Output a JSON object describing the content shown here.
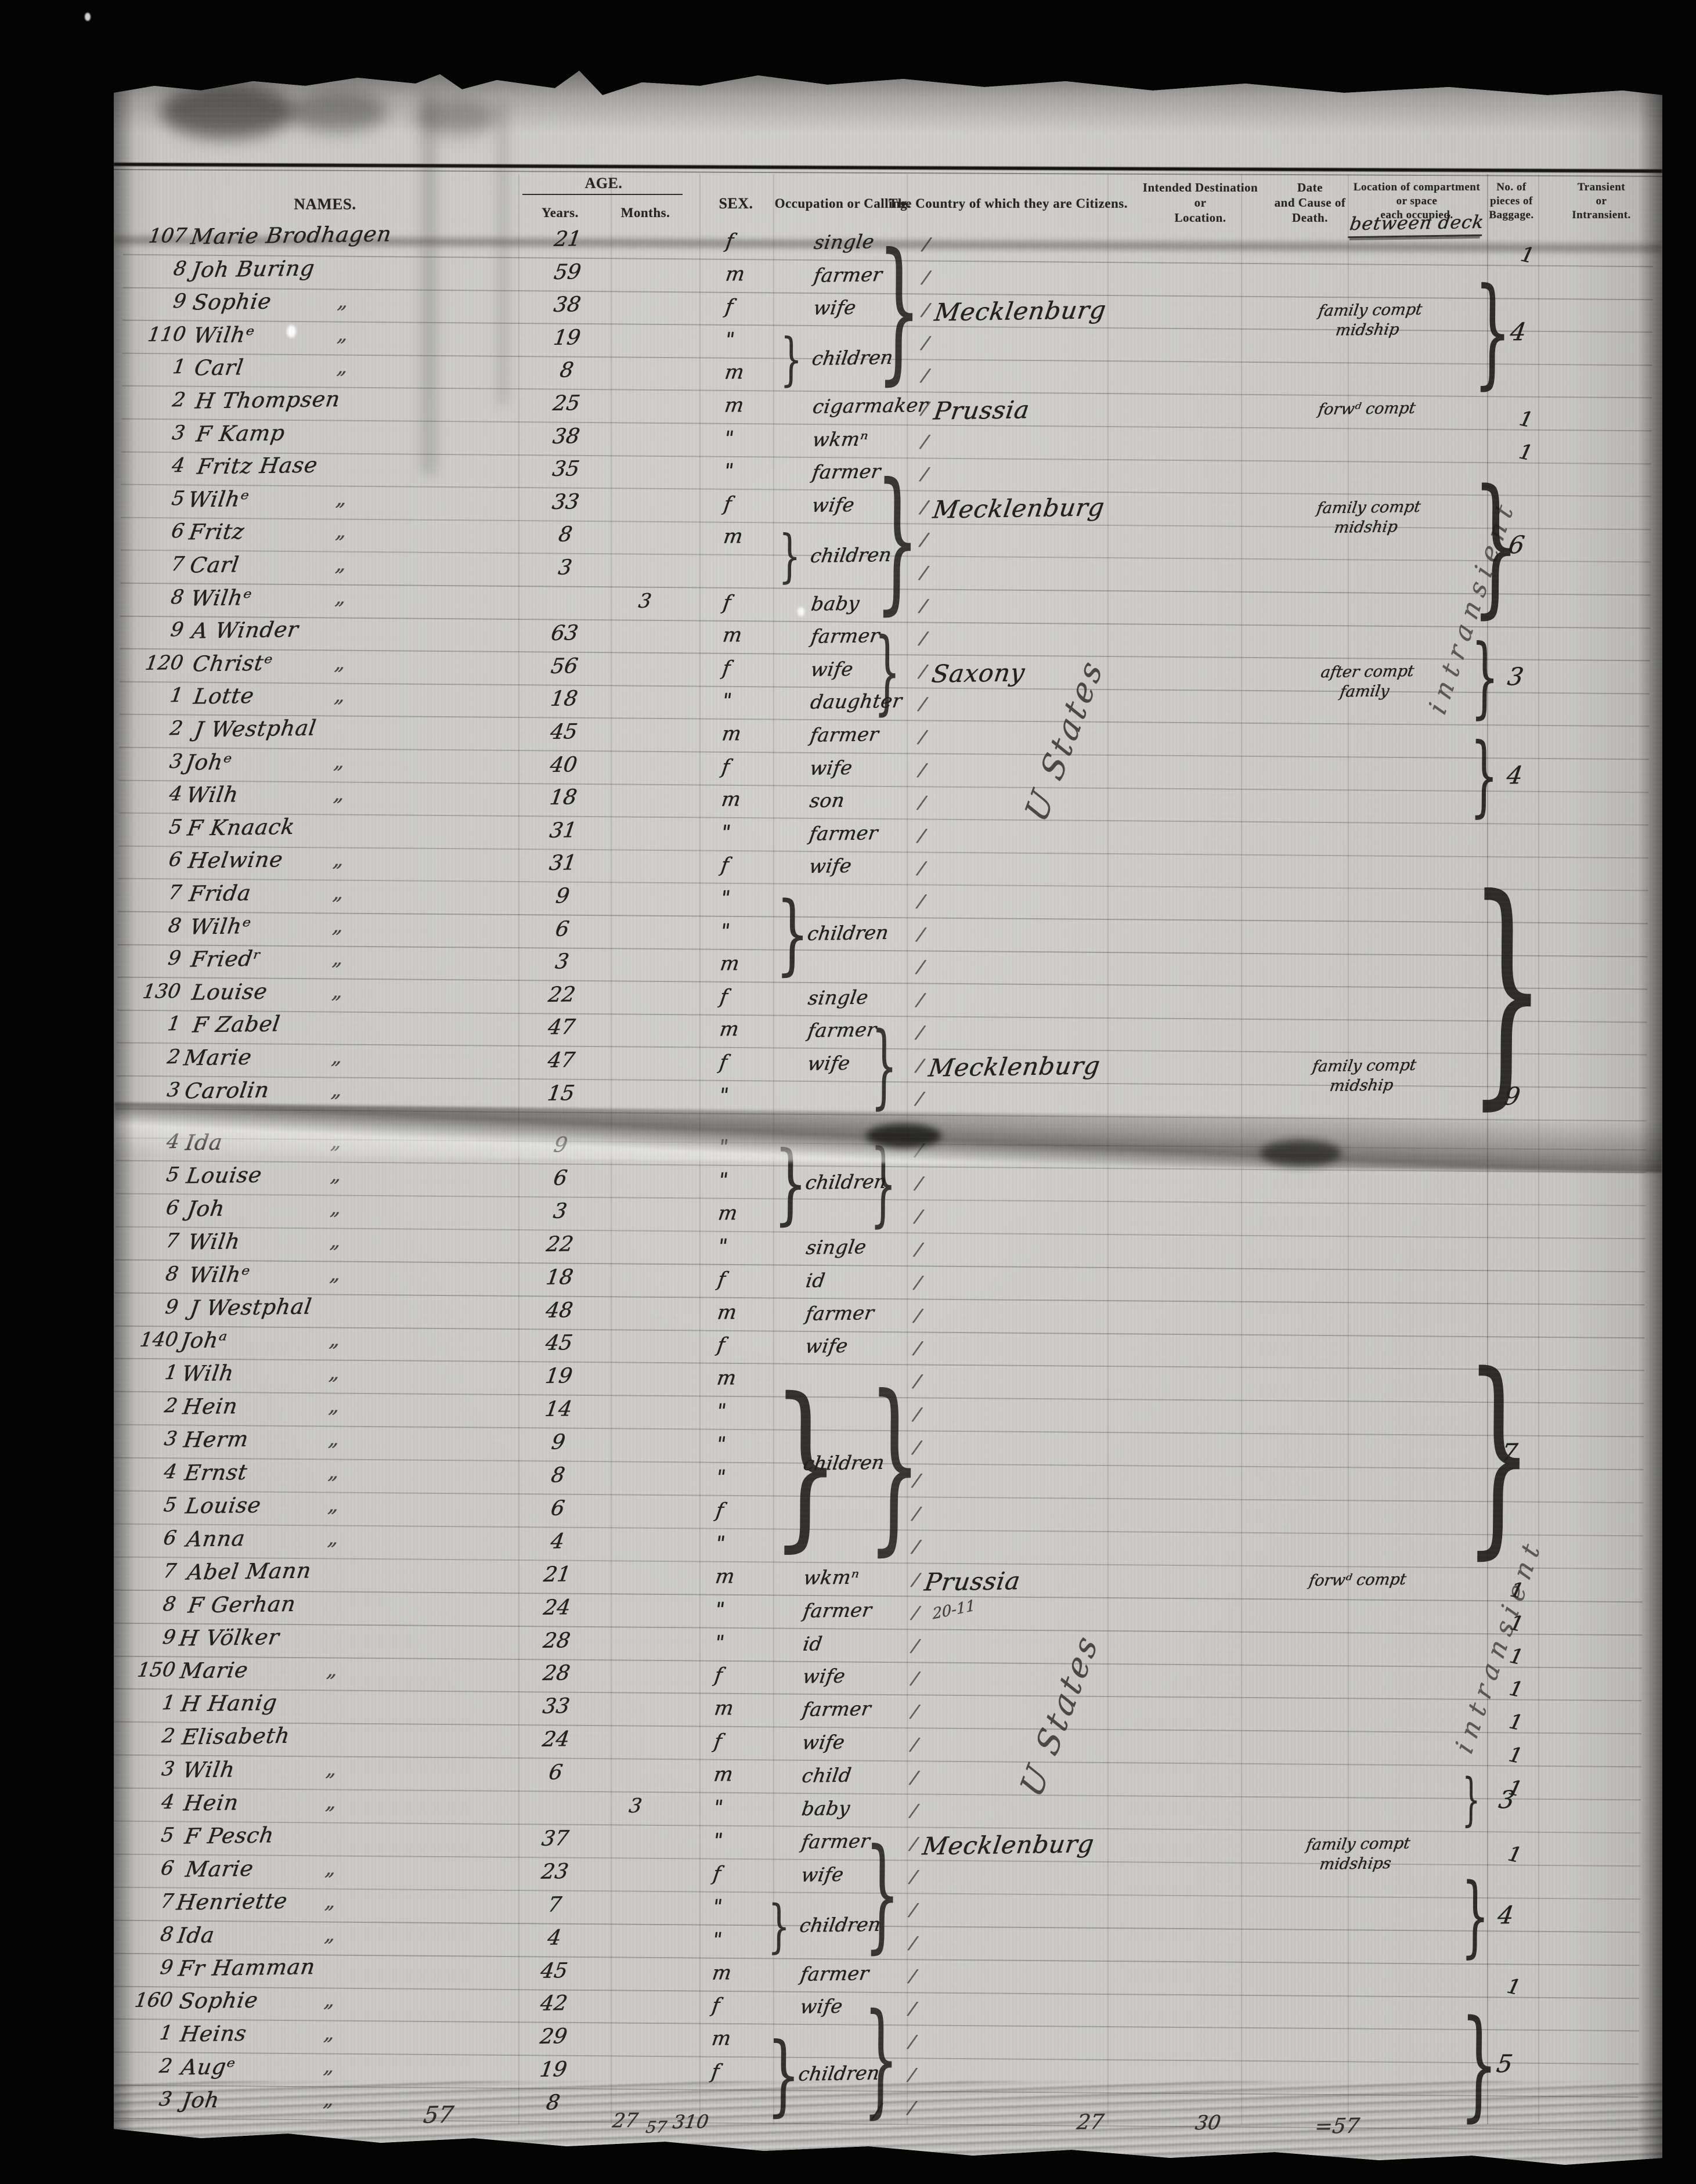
{
  "header": {
    "names": "NAMES.",
    "age": "AGE.",
    "years": "Years.",
    "months": "Months.",
    "sex": "SEX.",
    "occupation": "Occupation or Calling.",
    "country": "The Country of which they are Citizens.",
    "destination": "Intended Destination\nor\nLocation.",
    "death": "Date\nand Cause of\nDeath.",
    "compartment": "Location of compartment\nor space\neach occupied.",
    "baggage": "No. of\npieces of\nBaggage.",
    "transient": "Transient\nor\nIntransient."
  },
  "annotations": {
    "between_deck": "between deck",
    "destination_note": "U States",
    "transient_note": "intransient",
    "prussia_note": "20-11"
  },
  "rows_top": [
    {
      "n": "107",
      "nm": "Marie Brodhagen",
      "d": 0,
      "y": "21",
      "m": "",
      "s": "f",
      "o": "single"
    },
    {
      "n": "8",
      "nm": "Joh Buring",
      "d": 0,
      "y": "59",
      "m": "",
      "s": "m",
      "o": "farmer"
    },
    {
      "n": "9",
      "nm": "Sophie",
      "d": 1,
      "y": "38",
      "m": "",
      "s": "f",
      "o": "wife"
    },
    {
      "n": "110",
      "nm": "Wilhᵉ",
      "d": 1,
      "y": "19",
      "m": "",
      "s": "\"",
      "o": ""
    },
    {
      "n": "1",
      "nm": "Carl",
      "d": 1,
      "y": "8",
      "m": "",
      "s": "m",
      "o": ""
    },
    {
      "n": "2",
      "nm": "H Thompsen",
      "d": 0,
      "y": "25",
      "m": "",
      "s": "m",
      "o": "cigarmaker"
    },
    {
      "n": "3",
      "nm": "F Kamp",
      "d": 0,
      "y": "38",
      "m": "",
      "s": "\"",
      "o": "wkmⁿ"
    },
    {
      "n": "4",
      "nm": "Fritz Hase",
      "d": 0,
      "y": "35",
      "m": "",
      "s": "\"",
      "o": "farmer"
    },
    {
      "n": "5",
      "nm": "Wilhᵉ",
      "d": 1,
      "y": "33",
      "m": "",
      "s": "f",
      "o": "wife"
    },
    {
      "n": "6",
      "nm": "Fritz",
      "d": 1,
      "y": "8",
      "m": "",
      "s": "m",
      "o": ""
    },
    {
      "n": "7",
      "nm": "Carl",
      "d": 1,
      "y": "3",
      "m": "",
      "s": "",
      "o": ""
    },
    {
      "n": "8",
      "nm": "Wilhᵉ",
      "d": 1,
      "y": "",
      "m": "3",
      "s": "f",
      "o": "baby"
    },
    {
      "n": "9",
      "nm": "A Winder",
      "d": 0,
      "y": "63",
      "m": "",
      "s": "m",
      "o": "farmer"
    },
    {
      "n": "120",
      "nm": "Christᵉ",
      "d": 1,
      "y": "56",
      "m": "",
      "s": "f",
      "o": "wife"
    },
    {
      "n": "1",
      "nm": "Lotte",
      "d": 1,
      "y": "18",
      "m": "",
      "s": "\"",
      "o": "daughter"
    },
    {
      "n": "2",
      "nm": "J Westphal",
      "d": 0,
      "y": "45",
      "m": "",
      "s": "m",
      "o": "farmer"
    },
    {
      "n": "3",
      "nm": "Johᵉ",
      "d": 1,
      "y": "40",
      "m": "",
      "s": "f",
      "o": "wife"
    },
    {
      "n": "4",
      "nm": "Wilh",
      "d": 1,
      "y": "18",
      "m": "",
      "s": "m",
      "o": "son"
    },
    {
      "n": "5",
      "nm": "F Knaack",
      "d": 0,
      "y": "31",
      "m": "",
      "s": "\"",
      "o": "farmer"
    },
    {
      "n": "6",
      "nm": "Helwine",
      "d": 1,
      "y": "31",
      "m": "",
      "s": "f",
      "o": "wife"
    },
    {
      "n": "7",
      "nm": "Frida",
      "d": 1,
      "y": "9",
      "m": "",
      "s": "\"",
      "o": ""
    },
    {
      "n": "8",
      "nm": "Wilhᵉ",
      "d": 1,
      "y": "6",
      "m": "",
      "s": "\"",
      "o": ""
    },
    {
      "n": "9",
      "nm": "Friedʳ",
      "d": 1,
      "y": "3",
      "m": "",
      "s": "m",
      "o": ""
    },
    {
      "n": "130",
      "nm": "Louise",
      "d": 1,
      "y": "22",
      "m": "",
      "s": "f",
      "o": "single"
    },
    {
      "n": "1",
      "nm": "F Zabel",
      "d": 0,
      "y": "47",
      "m": "",
      "s": "m",
      "o": "farmer"
    },
    {
      "n": "2",
      "nm": "Marie",
      "d": 1,
      "y": "47",
      "m": "",
      "s": "f",
      "o": "wife"
    },
    {
      "n": "3",
      "nm": "Carolin",
      "d": 1,
      "y": "15",
      "m": "",
      "s": "\"",
      "o": ""
    }
  ],
  "rows_bottom": [
    {
      "n": "4",
      "nm": "Ida",
      "d": 1,
      "y": "9",
      "m": "",
      "s": "\"",
      "o": ""
    },
    {
      "n": "5",
      "nm": "Louise",
      "d": 1,
      "y": "6",
      "m": "",
      "s": "\"",
      "o": ""
    },
    {
      "n": "6",
      "nm": "Joh",
      "d": 1,
      "y": "3",
      "m": "",
      "s": "m",
      "o": ""
    },
    {
      "n": "7",
      "nm": "Wilh",
      "d": 1,
      "y": "22",
      "m": "",
      "s": "\"",
      "o": "single"
    },
    {
      "n": "8",
      "nm": "Wilhᵉ",
      "d": 1,
      "y": "18",
      "m": "",
      "s": "f",
      "o": "id"
    },
    {
      "n": "9",
      "nm": "J Westphal",
      "d": 0,
      "y": "48",
      "m": "",
      "s": "m",
      "o": "farmer"
    },
    {
      "n": "140",
      "nm": "Johᵃ",
      "d": 1,
      "y": "45",
      "m": "",
      "s": "f",
      "o": "wife"
    },
    {
      "n": "1",
      "nm": "Wilh",
      "d": 1,
      "y": "19",
      "m": "",
      "s": "m",
      "o": ""
    },
    {
      "n": "2",
      "nm": "Hein",
      "d": 1,
      "y": "14",
      "m": "",
      "s": "\"",
      "o": ""
    },
    {
      "n": "3",
      "nm": "Herm",
      "d": 1,
      "y": "9",
      "m": "",
      "s": "\"",
      "o": ""
    },
    {
      "n": "4",
      "nm": "Ernst",
      "d": 1,
      "y": "8",
      "m": "",
      "s": "\"",
      "o": ""
    },
    {
      "n": "5",
      "nm": "Louise",
      "d": 1,
      "y": "6",
      "m": "",
      "s": "f",
      "o": ""
    },
    {
      "n": "6",
      "nm": "Anna",
      "d": 1,
      "y": "4",
      "m": "",
      "s": "\"",
      "o": ""
    },
    {
      "n": "7",
      "nm": "Abel Mann",
      "d": 0,
      "y": "21",
      "m": "",
      "s": "m",
      "o": "wkmⁿ"
    },
    {
      "n": "8",
      "nm": "F Gerhan",
      "d": 0,
      "y": "24",
      "m": "",
      "s": "\"",
      "o": "farmer"
    },
    {
      "n": "9",
      "nm": "H Völker",
      "d": 0,
      "y": "28",
      "m": "",
      "s": "\"",
      "o": "id"
    },
    {
      "n": "150",
      "nm": "Marie",
      "d": 1,
      "y": "28",
      "m": "",
      "s": "f",
      "o": "wife"
    },
    {
      "n": "1",
      "nm": "H Hanig",
      "d": 0,
      "y": "33",
      "m": "",
      "s": "m",
      "o": "farmer"
    },
    {
      "n": "2",
      "nm": "Elisabeth",
      "d": 0,
      "y": "24",
      "m": "",
      "s": "f",
      "o": "wife"
    },
    {
      "n": "3",
      "nm": "Wilh",
      "d": 1,
      "y": "6",
      "m": "",
      "s": "m",
      "o": "child"
    },
    {
      "n": "4",
      "nm": "Hein",
      "d": 1,
      "y": "",
      "m": "3",
      "s": "\"",
      "o": "baby"
    },
    {
      "n": "5",
      "nm": "F Pesch",
      "d": 0,
      "y": "37",
      "m": "",
      "s": "\"",
      "o": "farmer"
    },
    {
      "n": "6",
      "nm": "Marie",
      "d": 1,
      "y": "23",
      "m": "",
      "s": "f",
      "o": "wife"
    },
    {
      "n": "7",
      "nm": "Henriette",
      "d": 1,
      "y": "7",
      "m": "",
      "s": "\"",
      "o": ""
    },
    {
      "n": "8",
      "nm": "Ida",
      "d": 1,
      "y": "4",
      "m": "",
      "s": "\"",
      "o": ""
    },
    {
      "n": "9",
      "nm": "Fr Hamman",
      "d": 0,
      "y": "45",
      "m": "",
      "s": "m",
      "o": "farmer"
    },
    {
      "n": "160",
      "nm": "Sophie",
      "d": 1,
      "y": "42",
      "m": "",
      "s": "f",
      "o": "wife"
    },
    {
      "n": "1",
      "nm": "Heins",
      "d": 1,
      "y": "29",
      "m": "",
      "s": "m",
      "o": ""
    },
    {
      "n": "2",
      "nm": "Augᵉ",
      "d": 1,
      "y": "19",
      "m": "",
      "s": "f",
      "o": ""
    },
    {
      "n": "3",
      "nm": "Joh",
      "d": 1,
      "y": "8",
      "m": "",
      "s": "",
      "o": ""
    }
  ],
  "countries": [
    {
      "row": 3,
      "text": "Mecklenburg"
    },
    {
      "row": 6,
      "text": "Prussia"
    },
    {
      "row": 9,
      "text": "Mecklenburg"
    },
    {
      "row": 14,
      "text": "Saxony"
    },
    {
      "row": 26,
      "text": "Mecklenburg"
    },
    {
      "row": 41,
      "text": "Prussia"
    },
    {
      "row": 42,
      "text": "20-11",
      "small": 1
    },
    {
      "row": 49,
      "text": "Mecklenburg"
    }
  ],
  "compartments": [
    {
      "row": 3,
      "text": "family compt\nmidship"
    },
    {
      "row": 6,
      "text": "forwᵈ compt"
    },
    {
      "row": 9,
      "text": "family compt\nmidship"
    },
    {
      "row": 14,
      "text": "after compt\nfamily"
    },
    {
      "row": 26,
      "text": "family compt\nmidship"
    },
    {
      "row": 41,
      "text": "forwᵈ compt"
    },
    {
      "row": 49,
      "text": "family compt\nmidships"
    }
  ],
  "children_braces": [
    {
      "from": 4,
      "to": 5,
      "label": "children"
    },
    {
      "from": 10,
      "to": 11,
      "label": "children"
    },
    {
      "from": 21,
      "to": 23,
      "label": "children"
    },
    {
      "from": 28,
      "to": 30,
      "label": "children"
    },
    {
      "from": 35,
      "to": 40,
      "label": "children"
    },
    {
      "from": 51,
      "to": 52,
      "label": "children"
    },
    {
      "from": 55,
      "to": 57,
      "label": "children"
    }
  ],
  "group_braces": [
    {
      "from": 1,
      "to": 5
    },
    {
      "from": 8,
      "to": 12
    },
    {
      "from": 13,
      "to": 15
    },
    {
      "from": 25,
      "to": 27
    },
    {
      "from": 28,
      "to": 30
    },
    {
      "from": 35,
      "to": 40
    },
    {
      "from": 49,
      "to": 52
    },
    {
      "from": 54,
      "to": 57
    }
  ],
  "baggage_single": [
    {
      "row": 1,
      "v": "1"
    },
    {
      "row": 6,
      "v": "1"
    },
    {
      "row": 7,
      "v": "1"
    },
    {
      "row": 41,
      "v": "1"
    },
    {
      "row": 42,
      "v": "1"
    },
    {
      "row": 43,
      "v": "1"
    },
    {
      "row": 44,
      "v": "1"
    },
    {
      "row": 45,
      "v": "1"
    },
    {
      "row": 46,
      "v": "1"
    },
    {
      "row": 47,
      "v": "1"
    },
    {
      "row": 49,
      "v": "1"
    },
    {
      "row": 53,
      "v": "1"
    }
  ],
  "baggage_braces": [
    {
      "from": 2,
      "to": 5,
      "v": "4"
    },
    {
      "from": 8,
      "to": 12,
      "v": "6"
    },
    {
      "from": 13,
      "to": 15,
      "v": "3"
    },
    {
      "from": 16,
      "to": 18,
      "v": "4"
    },
    {
      "from": 20,
      "to": 27,
      "v": "9",
      "end": 1
    },
    {
      "from": 34,
      "to": 40,
      "v": "7"
    },
    {
      "from": 47,
      "to": 48,
      "v": "3"
    },
    {
      "from": 50,
      "to": 52,
      "v": "4"
    },
    {
      "from": 54,
      "to": 57,
      "v": "5"
    }
  ],
  "tallies": [
    "57",
    "27",
    "57",
    "310",
    "/",
    "27",
    "30",
    "=57"
  ]
}
